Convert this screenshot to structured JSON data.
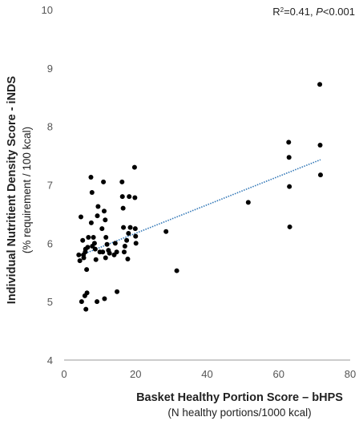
{
  "chart_data": {
    "type": "scatter",
    "title": "",
    "annotation": {
      "r2_prefix": "R",
      "r2_sup": "2",
      "r2_value": "=0.41, ",
      "p_label": "P",
      "p_value": "<0.001"
    },
    "xlabel": "Basket Healthy Portion Score – bHPS",
    "xlabel_sub": "(N healthy portions/1000 kcal)",
    "ylabel": "Individual Nutritient Density Score - iNDS",
    "ylabel_sub": "(% requirement / 100 kcal)",
    "xlim": [
      0,
      80
    ],
    "ylim": [
      4,
      10
    ],
    "x_ticks": [
      "0",
      "20",
      "40",
      "60",
      "80"
    ],
    "x_tick_values": [
      0,
      20,
      40,
      60,
      80
    ],
    "y_ticks": [
      "4",
      "5",
      "6",
      "7",
      "8",
      "9",
      "10"
    ],
    "y_tick_values": [
      4,
      5,
      6,
      7,
      8,
      9,
      10
    ],
    "grid": false,
    "colors": {
      "points": "#000000",
      "trendline": "#2E75B6",
      "axis": "#999999"
    },
    "series": [
      {
        "points": [
          [
            4.1,
            5.8
          ],
          [
            4.4,
            5.7
          ],
          [
            4.7,
            6.45
          ],
          [
            4.9,
            5.0
          ],
          [
            5.2,
            6.05
          ],
          [
            5.5,
            5.75
          ],
          [
            5.8,
            5.1
          ],
          [
            5.9,
            5.85
          ],
          [
            6.1,
            4.87
          ],
          [
            6.3,
            5.55
          ],
          [
            6.4,
            5.15
          ],
          [
            6.6,
            5.93
          ],
          [
            6.8,
            6.1
          ],
          [
            5.4,
            5.8
          ],
          [
            6.0,
            5.9
          ],
          [
            7.5,
            7.13
          ],
          [
            7.8,
            6.87
          ],
          [
            7.6,
            6.35
          ],
          [
            7.9,
            5.95
          ],
          [
            8.2,
            6.1
          ],
          [
            8.5,
            6.0
          ],
          [
            8.7,
            5.9
          ],
          [
            8.9,
            5.72
          ],
          [
            9.2,
            5.0
          ],
          [
            9.3,
            6.47
          ],
          [
            9.5,
            6.63
          ],
          [
            10.0,
            5.85
          ],
          [
            10.6,
            6.25
          ],
          [
            10.8,
            5.85
          ],
          [
            11.0,
            7.05
          ],
          [
            11.2,
            6.55
          ],
          [
            11.3,
            5.05
          ],
          [
            11.5,
            6.4
          ],
          [
            11.6,
            5.75
          ],
          [
            11.7,
            6.1
          ],
          [
            12.0,
            5.98
          ],
          [
            12.4,
            5.88
          ],
          [
            12.7,
            5.83
          ],
          [
            14.0,
            5.8
          ],
          [
            14.3,
            6.0
          ],
          [
            14.7,
            5.85
          ],
          [
            14.8,
            5.17
          ],
          [
            16.2,
            7.05
          ],
          [
            16.3,
            6.8
          ],
          [
            16.5,
            6.6
          ],
          [
            16.6,
            6.27
          ],
          [
            16.8,
            5.85
          ],
          [
            17.0,
            5.95
          ],
          [
            17.5,
            6.05
          ],
          [
            17.8,
            5.73
          ],
          [
            18.0,
            6.17
          ],
          [
            18.2,
            6.8
          ],
          [
            18.5,
            6.27
          ],
          [
            19.7,
            7.3
          ],
          [
            19.8,
            6.78
          ],
          [
            19.9,
            6.25
          ],
          [
            20.0,
            6.12
          ],
          [
            20.1,
            6.0
          ],
          [
            28.5,
            6.2
          ],
          [
            31.5,
            5.53
          ],
          [
            51.5,
            6.7
          ],
          [
            62.8,
            7.73
          ],
          [
            62.9,
            7.47
          ],
          [
            63.0,
            6.97
          ],
          [
            63.1,
            6.28
          ],
          [
            71.5,
            8.72
          ],
          [
            71.6,
            7.68
          ],
          [
            71.7,
            7.17
          ]
        ]
      }
    ],
    "trendline": {
      "x_start": 4,
      "y_start": 5.78,
      "x_end": 71.7,
      "y_end": 7.43
    }
  }
}
